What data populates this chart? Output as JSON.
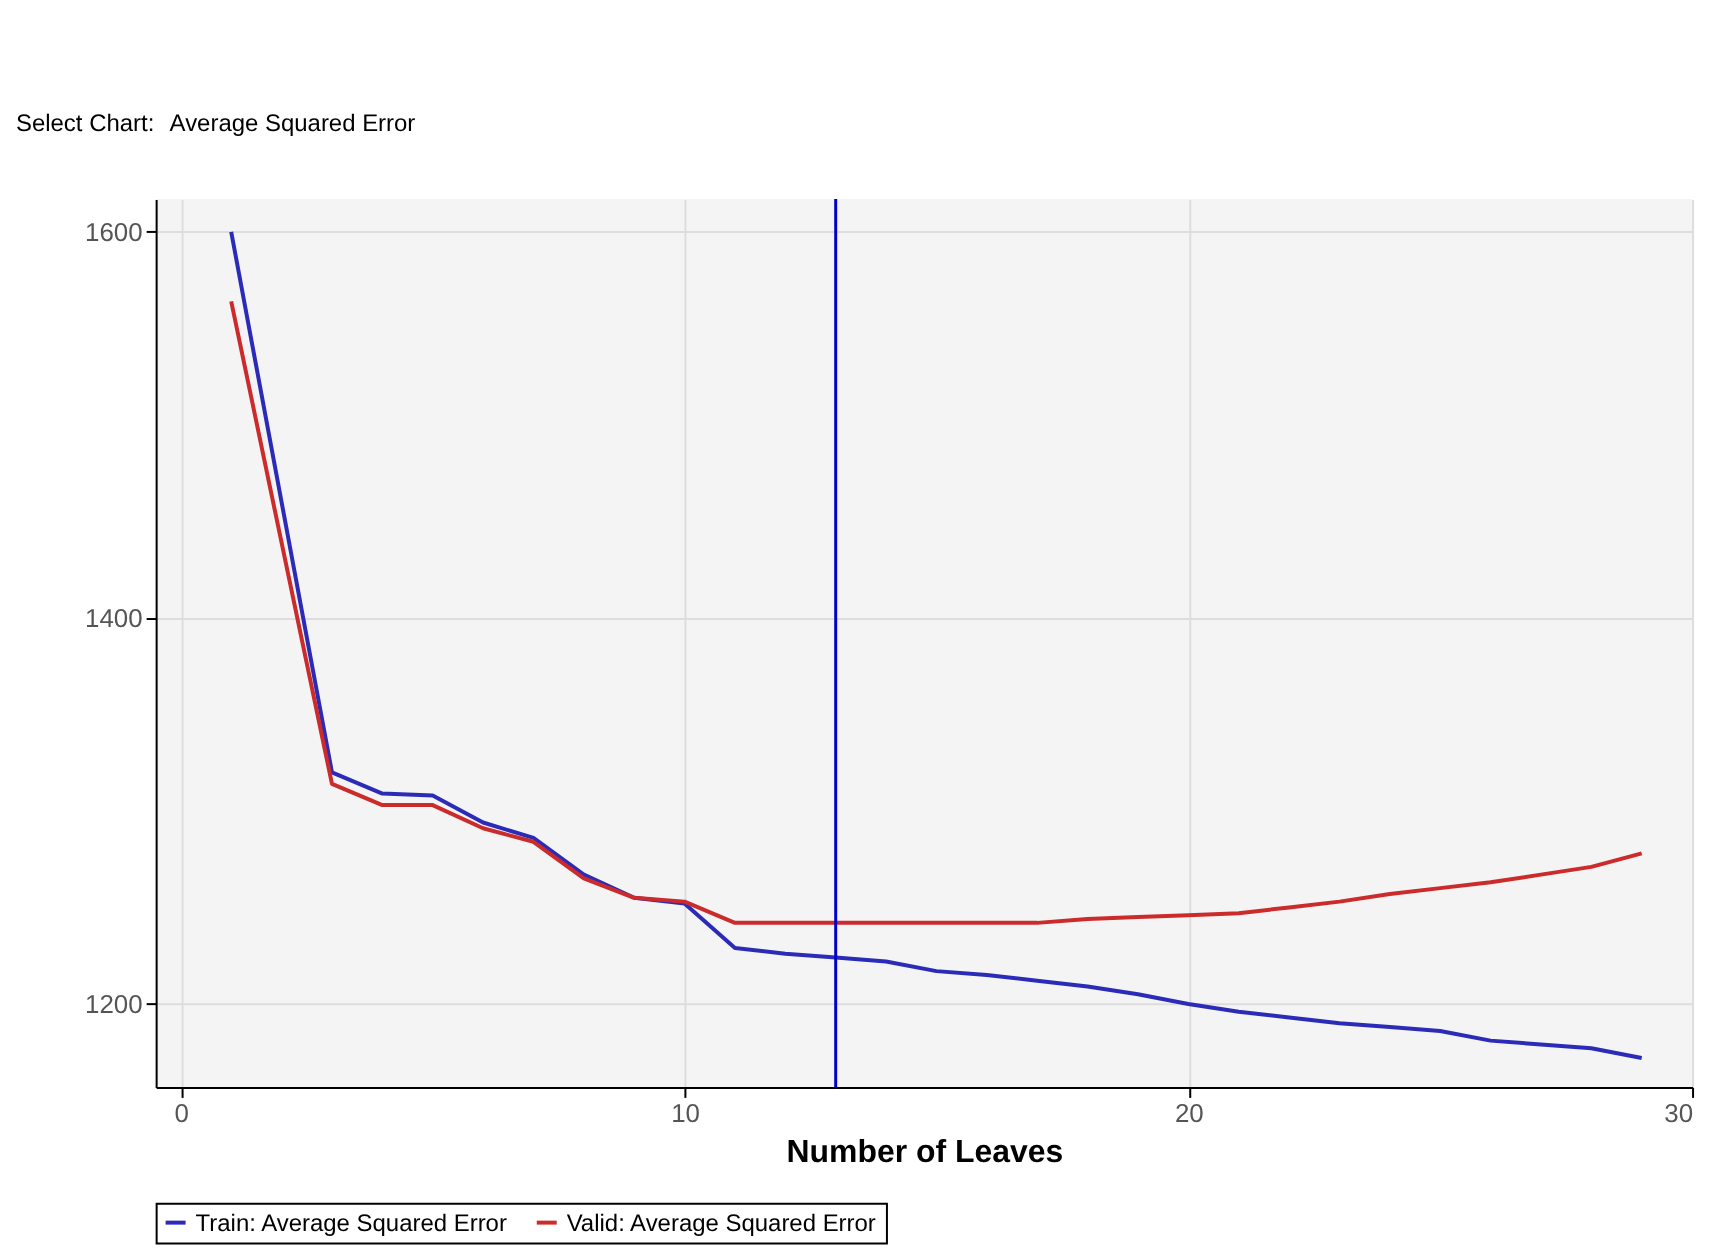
{
  "chart_data": {
    "type": "line",
    "xlabel": "Number of Leaves",
    "annotations": [
      "Select Chart:",
      "Average Squared Error"
    ],
    "xlim": [
      -0.5,
      30
    ],
    "xticks": [
      0,
      10,
      20,
      30
    ],
    "ylim": [
      1157,
      1617
    ],
    "yticks": [
      1200,
      1400,
      1600
    ],
    "grid": true,
    "legend": "bottom",
    "marker": "none",
    "line_style": "solid",
    "series": [
      {
        "name": "Train: Average Squared Error",
        "color": "#2b2bb8",
        "x": [
          1,
          3,
          4,
          5,
          6,
          7,
          8,
          9,
          10,
          11,
          12,
          13,
          14,
          15,
          16,
          17,
          18,
          19,
          20,
          21,
          22,
          23,
          24,
          25,
          26,
          27,
          28,
          29
        ],
        "values": [
          1600,
          1320,
          1309,
          1308,
          1294,
          1286,
          1267,
          1255,
          1252,
          1229,
          1226,
          1224,
          1222,
          1217,
          1215,
          1212,
          1209,
          1205,
          1200,
          1196,
          1193,
          1190,
          1188,
          1186,
          1181,
          1179,
          1177,
          1172
        ]
      },
      {
        "name": "Valid: Average Squared Error",
        "color": "#cc2b2b",
        "x": [
          1,
          3,
          4,
          5,
          6,
          7,
          8,
          9,
          10,
          11,
          12,
          13,
          14,
          15,
          16,
          17,
          18,
          19,
          20,
          21,
          22,
          23,
          24,
          25,
          26,
          27,
          28,
          29
        ],
        "values": [
          1564,
          1314,
          1303,
          1303,
          1291,
          1284,
          1265,
          1255,
          1253,
          1242,
          1242,
          1242,
          1242,
          1242,
          1242,
          1242,
          1244,
          1245,
          1246,
          1247,
          1250,
          1253,
          1257,
          1260,
          1263,
          1267,
          1271,
          1278
        ]
      }
    ],
    "ref_lines": [
      {
        "axis": "x",
        "value": 13,
        "color": "#0000cc"
      }
    ]
  }
}
